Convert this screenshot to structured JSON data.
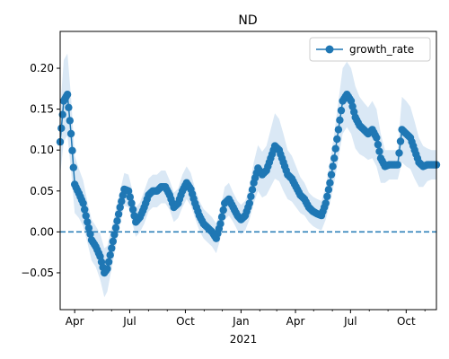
{
  "chart_data": {
    "type": "line",
    "title": "ND",
    "xlabel": "",
    "ylabel": "",
    "x_range": [
      "2020-03-08",
      "2021-11-20"
    ],
    "ylim": [
      -0.095,
      0.245
    ],
    "y_ticks": [
      -0.05,
      0.0,
      0.05,
      0.1,
      0.15,
      0.2
    ],
    "y_tick_labels": [
      "−0.05",
      "0.00",
      "0.05",
      "0.10",
      "0.15",
      "0.20"
    ],
    "x_ticks": [
      {
        "date": "2020-04-01",
        "label": "Apr"
      },
      {
        "date": "2020-07-01",
        "label": "Jul"
      },
      {
        "date": "2020-10-01",
        "label": "Oct"
      },
      {
        "date": "2021-01-01",
        "label": "Jan"
      },
      {
        "date": "2021-04-01",
        "label": "Apr"
      },
      {
        "date": "2021-07-01",
        "label": "Jul"
      },
      {
        "date": "2021-10-01",
        "label": "Oct"
      }
    ],
    "year_label": "2021",
    "legend": {
      "position": "top-right",
      "entries": [
        "growth_rate"
      ]
    },
    "reference_line": {
      "y": 0.0,
      "style": "dashed"
    },
    "colors": {
      "line": "#1f77b4",
      "band": "#dae8f5"
    },
    "series": [
      {
        "name": "growth_rate",
        "x": [
          "2020-03-08",
          "2020-03-14",
          "2020-03-20",
          "2020-03-26",
          "2020-04-01",
          "2020-04-08",
          "2020-04-15",
          "2020-04-22",
          "2020-04-29",
          "2020-05-06",
          "2020-05-13",
          "2020-05-20",
          "2020-05-25",
          "2020-06-01",
          "2020-06-08",
          "2020-06-15",
          "2020-06-22",
          "2020-06-29",
          "2020-07-04",
          "2020-07-11",
          "2020-07-18",
          "2020-07-25",
          "2020-08-01",
          "2020-08-08",
          "2020-08-15",
          "2020-08-22",
          "2020-08-29",
          "2020-09-05",
          "2020-09-12",
          "2020-09-19",
          "2020-09-26",
          "2020-10-03",
          "2020-10-10",
          "2020-10-17",
          "2020-10-24",
          "2020-10-31",
          "2020-11-07",
          "2020-11-14",
          "2020-11-21",
          "2020-11-28",
          "2020-12-05",
          "2020-12-12",
          "2020-12-19",
          "2020-12-26",
          "2021-01-01",
          "2021-01-08",
          "2021-01-15",
          "2021-01-22",
          "2021-01-29",
          "2021-02-05",
          "2021-02-12",
          "2021-02-19",
          "2021-02-26",
          "2021-03-05",
          "2021-03-12",
          "2021-03-19",
          "2021-03-26",
          "2021-04-02",
          "2021-04-09",
          "2021-04-16",
          "2021-04-23",
          "2021-04-30",
          "2021-05-07",
          "2021-05-14",
          "2021-05-21",
          "2021-05-28",
          "2021-06-04",
          "2021-06-11",
          "2021-06-18",
          "2021-06-25",
          "2021-07-02",
          "2021-07-09",
          "2021-07-16",
          "2021-07-23",
          "2021-07-30",
          "2021-08-06",
          "2021-08-13",
          "2021-08-20",
          "2021-08-27",
          "2021-09-03",
          "2021-09-10",
          "2021-09-17",
          "2021-09-24",
          "2021-10-01",
          "2021-10-08",
          "2021-10-15",
          "2021-10-22",
          "2021-10-29",
          "2021-11-05",
          "2021-11-12",
          "2021-11-20"
        ],
        "y": [
          0.11,
          0.16,
          0.168,
          0.12,
          0.058,
          0.047,
          0.035,
          0.012,
          -0.01,
          -0.018,
          -0.03,
          -0.05,
          -0.045,
          -0.02,
          0.005,
          0.03,
          0.052,
          0.05,
          0.035,
          0.012,
          0.018,
          0.03,
          0.045,
          0.05,
          0.05,
          0.055,
          0.055,
          0.045,
          0.03,
          0.035,
          0.05,
          0.06,
          0.052,
          0.035,
          0.02,
          0.01,
          0.005,
          0.0,
          -0.008,
          0.01,
          0.035,
          0.04,
          0.03,
          0.02,
          0.015,
          0.02,
          0.035,
          0.06,
          0.078,
          0.07,
          0.075,
          0.09,
          0.105,
          0.1,
          0.085,
          0.07,
          0.065,
          0.055,
          0.045,
          0.04,
          0.03,
          0.025,
          0.022,
          0.02,
          0.035,
          0.06,
          0.09,
          0.125,
          0.16,
          0.168,
          0.16,
          0.14,
          0.13,
          0.125,
          0.12,
          0.125,
          0.115,
          0.09,
          0.08,
          0.082,
          0.082,
          0.082,
          0.125,
          0.12,
          0.115,
          0.1,
          0.085,
          0.08,
          0.082,
          0.082,
          0.082
        ],
        "band_halfwidth": [
          0.04,
          0.05,
          0.05,
          0.045,
          0.035,
          0.03,
          0.028,
          0.025,
          0.025,
          0.025,
          0.028,
          0.03,
          0.028,
          0.025,
          0.022,
          0.02,
          0.02,
          0.02,
          0.02,
          0.018,
          0.018,
          0.02,
          0.02,
          0.02,
          0.02,
          0.02,
          0.02,
          0.018,
          0.018,
          0.018,
          0.02,
          0.02,
          0.02,
          0.018,
          0.018,
          0.018,
          0.018,
          0.018,
          0.018,
          0.018,
          0.02,
          0.02,
          0.018,
          0.018,
          0.018,
          0.018,
          0.02,
          0.025,
          0.028,
          0.028,
          0.03,
          0.035,
          0.04,
          0.038,
          0.035,
          0.03,
          0.028,
          0.025,
          0.022,
          0.02,
          0.018,
          0.018,
          0.018,
          0.018,
          0.02,
          0.025,
          0.03,
          0.035,
          0.04,
          0.04,
          0.04,
          0.038,
          0.035,
          0.033,
          0.032,
          0.035,
          0.035,
          0.03,
          0.02,
          0.018,
          0.018,
          0.018,
          0.04,
          0.04,
          0.038,
          0.035,
          0.03,
          0.025,
          0.02,
          0.018,
          0.018
        ]
      }
    ]
  }
}
